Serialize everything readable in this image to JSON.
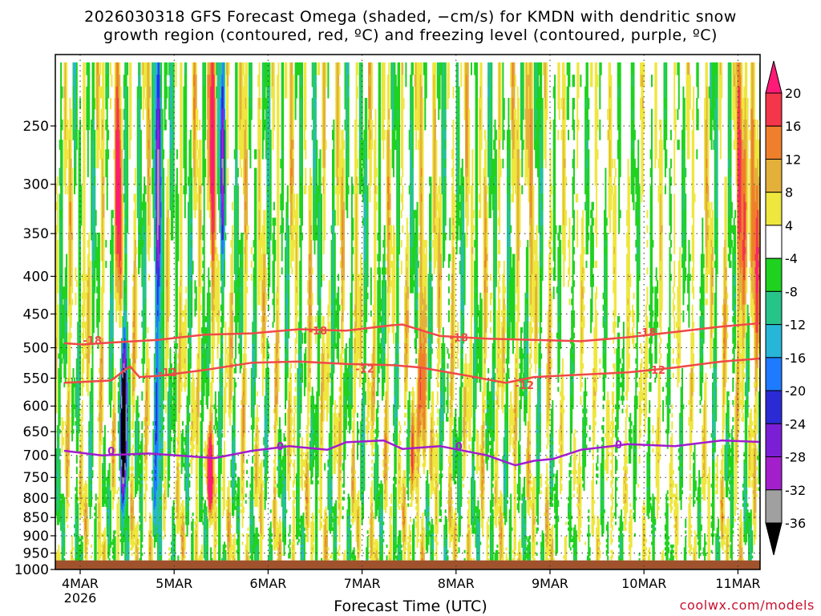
{
  "title_line1": "2026030318 GFS Forecast Omega (shaded, −cm/s) for KMDN with dendritic snow",
  "title_line2": "growth region (contoured, red, ºC) and freezing level (contoured, purple, ºC)",
  "credit": "coolwx.com/models",
  "chart_data": {
    "type": "heatmap",
    "xlabel": "Forecast Time (UTC)",
    "ylabel": "",
    "x_tick_labels": [
      "4MAR",
      "5MAR",
      "6MAR",
      "7MAR",
      "8MAR",
      "9MAR",
      "10MAR",
      "11MAR"
    ],
    "x_tick_sublabel": "2026",
    "y_tick_labels": [
      250,
      300,
      350,
      400,
      450,
      500,
      550,
      600,
      650,
      700,
      750,
      800,
      850,
      900,
      950,
      1000
    ],
    "ylim": [
      1000,
      200
    ],
    "y_scale": "log-pressure",
    "grid": true,
    "colorbar": {
      "labels": [
        20,
        16,
        12,
        8,
        4,
        -4,
        -8,
        -12,
        -16,
        -20,
        -24,
        -28,
        -32,
        -36
      ],
      "colors": [
        "#ff1a77",
        "#f4364a",
        "#f07f2b",
        "#e3b13a",
        "#efe63e",
        "#ffffff",
        "#1fd21f",
        "#27c48a",
        "#27b6d8",
        "#1e7bff",
        "#2b2bd6",
        "#7b1fd6",
        "#a31fcc",
        "#a0a0a0",
        "#000000"
      ]
    },
    "contours": [
      {
        "label": "-18",
        "color": "#f04848",
        "points": [
          [
            0,
            493
          ],
          [
            0.2,
            495
          ],
          [
            0.5,
            492
          ],
          [
            1.0,
            488
          ],
          [
            1.5,
            480
          ],
          [
            2.0,
            478
          ],
          [
            2.5,
            472
          ],
          [
            3.0,
            474
          ],
          [
            3.5,
            466
          ],
          [
            3.6,
            465
          ],
          [
            4.0,
            482
          ],
          [
            4.5,
            486
          ],
          [
            5.0,
            488
          ],
          [
            5.5,
            490
          ],
          [
            6.0,
            484
          ],
          [
            6.5,
            476
          ],
          [
            7.0,
            468
          ],
          [
            7.5,
            462
          ],
          [
            7.8,
            465
          ]
        ],
        "label_at": [
          [
            0.3,
            488
          ],
          [
            2.7,
            474
          ],
          [
            4.2,
            484
          ],
          [
            6.2,
            476
          ]
        ]
      },
      {
        "label": "-12",
        "color": "#f04848",
        "points": [
          [
            0,
            558
          ],
          [
            0.5,
            554
          ],
          [
            0.7,
            530
          ],
          [
            0.8,
            548
          ],
          [
            1.0,
            546
          ],
          [
            1.3,
            540
          ],
          [
            1.5,
            536
          ],
          [
            2.0,
            524
          ],
          [
            2.5,
            522
          ],
          [
            3.0,
            526
          ],
          [
            3.5,
            528
          ],
          [
            3.8,
            532
          ],
          [
            4.3,
            546
          ],
          [
            4.7,
            558
          ],
          [
            5.0,
            548
          ],
          [
            5.5,
            544
          ],
          [
            6.0,
            540
          ],
          [
            6.5,
            532
          ],
          [
            7.0,
            522
          ],
          [
            7.5,
            516
          ],
          [
            7.8,
            512
          ]
        ],
        "label_at": [
          [
            1.1,
            540
          ],
          [
            3.2,
            534
          ],
          [
            4.9,
            562
          ],
          [
            6.3,
            536
          ]
        ]
      },
      {
        "label": "0",
        "color": "#a21ccf",
        "points": [
          [
            0,
            690
          ],
          [
            0.4,
            700
          ],
          [
            0.9,
            696
          ],
          [
            1.2,
            700
          ],
          [
            1.6,
            706
          ],
          [
            2.0,
            690
          ],
          [
            2.4,
            680
          ],
          [
            2.8,
            688
          ],
          [
            3.0,
            672
          ],
          [
            3.4,
            668
          ],
          [
            3.6,
            686
          ],
          [
            4.0,
            680
          ],
          [
            4.5,
            700
          ],
          [
            4.8,
            722
          ],
          [
            5.0,
            712
          ],
          [
            5.2,
            708
          ],
          [
            5.5,
            688
          ],
          [
            6.0,
            676
          ],
          [
            6.5,
            680
          ],
          [
            7.0,
            668
          ],
          [
            7.5,
            672
          ],
          [
            7.8,
            685
          ]
        ],
        "label_at": [
          [
            0.5,
            690
          ],
          [
            2.3,
            680
          ],
          [
            4.2,
            680
          ],
          [
            5.9,
            676
          ]
        ]
      }
    ],
    "notable_features": "strong upward motion column near 4MAR 12Z from 450 to 900 hPa; terrain shading below about 970 hPa"
  }
}
